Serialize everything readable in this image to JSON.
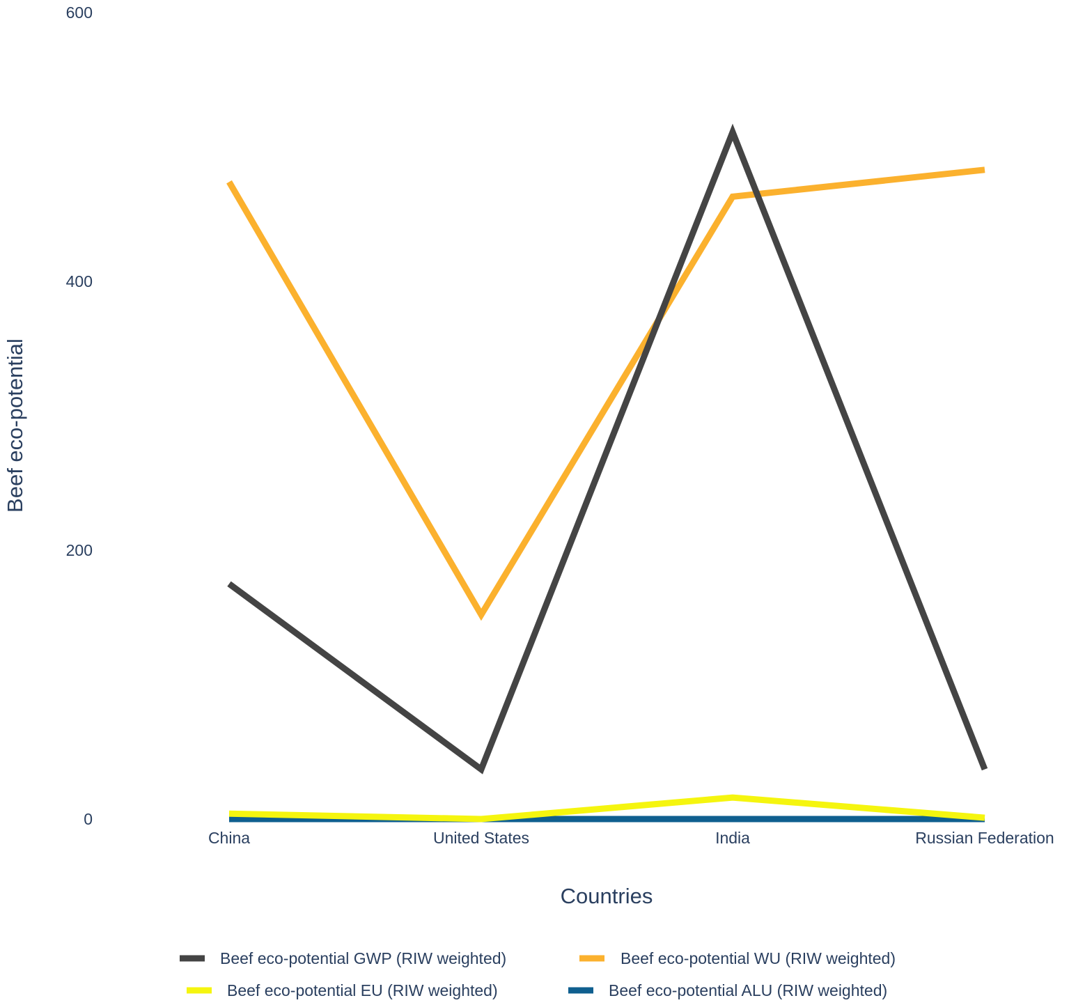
{
  "chart_data": {
    "type": "line",
    "title": "",
    "xlabel": "Countries",
    "ylabel": "Beef eco-potential",
    "categories": [
      "China",
      "United States",
      "India",
      "Russian Federation"
    ],
    "ylim": [
      0,
      600
    ],
    "yticks": [
      0,
      200,
      400,
      600
    ],
    "grid": false,
    "legend_position": "bottom",
    "series": [
      {
        "name": "Beef eco-potential GWP (RIW weighted)",
        "color": "#444444",
        "values": [
          175,
          37,
          511,
          37
        ]
      },
      {
        "name": "Beef eco-potential WU (RIW weighted)",
        "color": "#fbb12e",
        "values": [
          474,
          152,
          463,
          483
        ]
      },
      {
        "name": "Beef eco-potential EU (RIW weighted)",
        "color": "#f5f50f",
        "values": [
          4,
          0,
          16,
          1
        ]
      },
      {
        "name": "Beef eco-potential ALU (RIW weighted)",
        "color": "#0f5f8f",
        "values": [
          0,
          0,
          0,
          0
        ]
      }
    ]
  }
}
